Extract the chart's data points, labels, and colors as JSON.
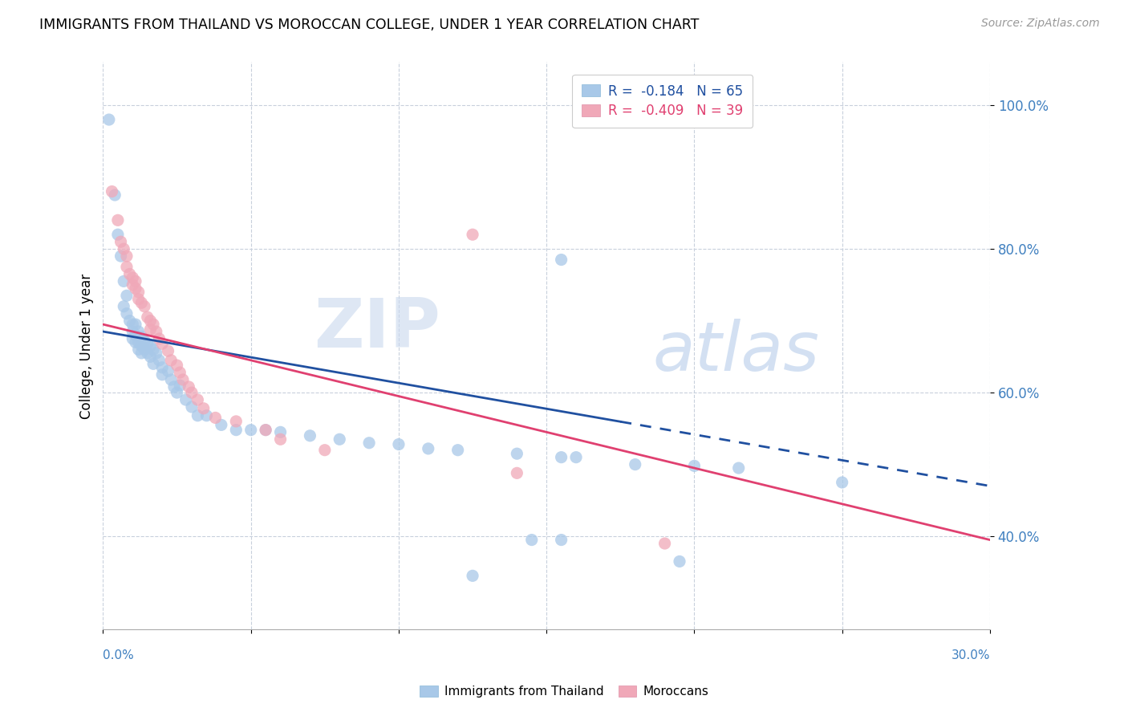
{
  "title": "IMMIGRANTS FROM THAILAND VS MOROCCAN COLLEGE, UNDER 1 YEAR CORRELATION CHART",
  "source": "Source: ZipAtlas.com",
  "ylabel": "College, Under 1 year",
  "ytick_labels": [
    "100.0%",
    "80.0%",
    "60.0%",
    "40.0%"
  ],
  "ytick_values": [
    1.0,
    0.8,
    0.6,
    0.4
  ],
  "xlim": [
    0.0,
    0.3
  ],
  "ylim": [
    0.27,
    1.06
  ],
  "legend_r1": "R =  -0.184   N = 65",
  "legend_r2": "R =  -0.409   N = 39",
  "watermark_zip": "ZIP",
  "watermark_atlas": "atlas",
  "thailand_color": "#a8c8e8",
  "moroccan_color": "#f0a8b8",
  "thailand_line_color": "#2050a0",
  "moroccan_line_color": "#e04070",
  "thailand_line_x0": 0.0,
  "thailand_line_y0": 0.685,
  "thailand_line_x1": 0.3,
  "thailand_line_y1": 0.47,
  "thailand_line_solid_end": 0.175,
  "moroccan_line_x0": 0.0,
  "moroccan_line_y0": 0.695,
  "moroccan_line_x1": 0.3,
  "moroccan_line_y1": 0.395,
  "thailand_scatter": [
    [
      0.002,
      0.98
    ],
    [
      0.004,
      0.875
    ],
    [
      0.005,
      0.82
    ],
    [
      0.006,
      0.79
    ],
    [
      0.007,
      0.755
    ],
    [
      0.007,
      0.72
    ],
    [
      0.008,
      0.735
    ],
    [
      0.008,
      0.71
    ],
    [
      0.009,
      0.7
    ],
    [
      0.01,
      0.695
    ],
    [
      0.01,
      0.685
    ],
    [
      0.01,
      0.675
    ],
    [
      0.011,
      0.695
    ],
    [
      0.011,
      0.68
    ],
    [
      0.011,
      0.67
    ],
    [
      0.012,
      0.685
    ],
    [
      0.012,
      0.67
    ],
    [
      0.012,
      0.66
    ],
    [
      0.013,
      0.678
    ],
    [
      0.013,
      0.665
    ],
    [
      0.013,
      0.655
    ],
    [
      0.014,
      0.672
    ],
    [
      0.014,
      0.66
    ],
    [
      0.015,
      0.668
    ],
    [
      0.015,
      0.655
    ],
    [
      0.016,
      0.665
    ],
    [
      0.016,
      0.65
    ],
    [
      0.017,
      0.66
    ],
    [
      0.017,
      0.64
    ],
    [
      0.018,
      0.655
    ],
    [
      0.019,
      0.645
    ],
    [
      0.02,
      0.635
    ],
    [
      0.02,
      0.625
    ],
    [
      0.022,
      0.63
    ],
    [
      0.023,
      0.618
    ],
    [
      0.024,
      0.608
    ],
    [
      0.025,
      0.6
    ],
    [
      0.026,
      0.61
    ],
    [
      0.028,
      0.59
    ],
    [
      0.03,
      0.58
    ],
    [
      0.032,
      0.568
    ],
    [
      0.035,
      0.568
    ],
    [
      0.04,
      0.555
    ],
    [
      0.045,
      0.548
    ],
    [
      0.05,
      0.548
    ],
    [
      0.055,
      0.548
    ],
    [
      0.06,
      0.545
    ],
    [
      0.07,
      0.54
    ],
    [
      0.08,
      0.535
    ],
    [
      0.09,
      0.53
    ],
    [
      0.1,
      0.528
    ],
    [
      0.11,
      0.522
    ],
    [
      0.12,
      0.52
    ],
    [
      0.14,
      0.515
    ],
    [
      0.155,
      0.51
    ],
    [
      0.16,
      0.51
    ],
    [
      0.18,
      0.5
    ],
    [
      0.2,
      0.498
    ],
    [
      0.215,
      0.495
    ],
    [
      0.145,
      0.395
    ],
    [
      0.155,
      0.395
    ],
    [
      0.195,
      0.365
    ],
    [
      0.155,
      0.785
    ],
    [
      0.25,
      0.475
    ],
    [
      0.125,
      0.345
    ]
  ],
  "moroccan_scatter": [
    [
      0.003,
      0.88
    ],
    [
      0.005,
      0.84
    ],
    [
      0.006,
      0.81
    ],
    [
      0.007,
      0.8
    ],
    [
      0.008,
      0.79
    ],
    [
      0.008,
      0.775
    ],
    [
      0.009,
      0.765
    ],
    [
      0.01,
      0.76
    ],
    [
      0.01,
      0.75
    ],
    [
      0.011,
      0.755
    ],
    [
      0.011,
      0.745
    ],
    [
      0.012,
      0.74
    ],
    [
      0.012,
      0.73
    ],
    [
      0.013,
      0.725
    ],
    [
      0.014,
      0.72
    ],
    [
      0.015,
      0.705
    ],
    [
      0.016,
      0.7
    ],
    [
      0.016,
      0.688
    ],
    [
      0.017,
      0.695
    ],
    [
      0.018,
      0.685
    ],
    [
      0.019,
      0.675
    ],
    [
      0.02,
      0.668
    ],
    [
      0.022,
      0.658
    ],
    [
      0.023,
      0.645
    ],
    [
      0.025,
      0.638
    ],
    [
      0.026,
      0.628
    ],
    [
      0.027,
      0.618
    ],
    [
      0.029,
      0.608
    ],
    [
      0.03,
      0.6
    ],
    [
      0.032,
      0.59
    ],
    [
      0.034,
      0.578
    ],
    [
      0.038,
      0.565
    ],
    [
      0.045,
      0.56
    ],
    [
      0.055,
      0.548
    ],
    [
      0.06,
      0.535
    ],
    [
      0.075,
      0.52
    ],
    [
      0.14,
      0.488
    ],
    [
      0.19,
      0.39
    ],
    [
      0.125,
      0.82
    ]
  ]
}
